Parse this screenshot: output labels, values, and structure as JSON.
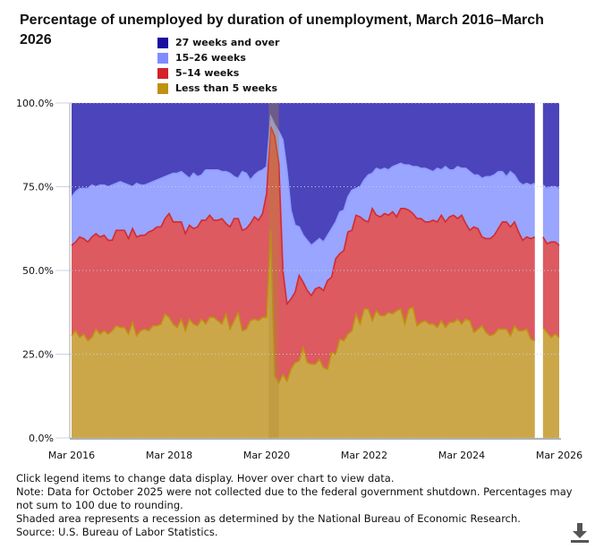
{
  "chart_data": {
    "type": "area",
    "stacked": true,
    "title": "Percentage of unemployed by duration of unemployment, March 2016–March 2026",
    "xlabel": "",
    "ylabel": "",
    "ylim": [
      0,
      100
    ],
    "y_ticks": [
      "0.0%",
      "25.0%",
      "50.0%",
      "75.0%",
      "100.0%"
    ],
    "x_ticks": [
      "Mar 2016",
      "Mar 2018",
      "Mar 2020",
      "Mar 2022",
      "Mar 2024",
      "Mar 2026"
    ],
    "grid": "horizontal dotted",
    "legend_position": "top",
    "recession": {
      "start": "2020-02",
      "end": "2020-04",
      "color": "#b08a30"
    },
    "categories": [
      "2016-03",
      "2016-04",
      "2016-05",
      "2016-06",
      "2016-07",
      "2016-08",
      "2016-09",
      "2016-10",
      "2016-11",
      "2016-12",
      "2017-01",
      "2017-02",
      "2017-03",
      "2017-04",
      "2017-05",
      "2017-06",
      "2017-07",
      "2017-08",
      "2017-09",
      "2017-10",
      "2017-11",
      "2017-12",
      "2018-01",
      "2018-02",
      "2018-03",
      "2018-04",
      "2018-05",
      "2018-06",
      "2018-07",
      "2018-08",
      "2018-09",
      "2018-10",
      "2018-11",
      "2018-12",
      "2019-01",
      "2019-02",
      "2019-03",
      "2019-04",
      "2019-05",
      "2019-06",
      "2019-07",
      "2019-08",
      "2019-09",
      "2019-10",
      "2019-11",
      "2019-12",
      "2020-01",
      "2020-02",
      "2020-03",
      "2020-04",
      "2020-05",
      "2020-06",
      "2020-07",
      "2020-08",
      "2020-09",
      "2020-10",
      "2020-11",
      "2020-12",
      "2021-01",
      "2021-02",
      "2021-03",
      "2021-04",
      "2021-05",
      "2021-06",
      "2021-07",
      "2021-08",
      "2021-09",
      "2021-10",
      "2021-11",
      "2021-12",
      "2022-01",
      "2022-02",
      "2022-03",
      "2022-04",
      "2022-05",
      "2022-06",
      "2022-07",
      "2022-08",
      "2022-09",
      "2022-10",
      "2022-11",
      "2022-12",
      "2023-01",
      "2023-02",
      "2023-03",
      "2023-04",
      "2023-05",
      "2023-06",
      "2023-07",
      "2023-08",
      "2023-09",
      "2023-10",
      "2023-11",
      "2023-12",
      "2024-01",
      "2024-02",
      "2024-03",
      "2024-04",
      "2024-05",
      "2024-06",
      "2024-07",
      "2024-08",
      "2024-09",
      "2024-10",
      "2024-11",
      "2024-12",
      "2025-01",
      "2025-02",
      "2025-03",
      "2025-04",
      "2025-05",
      "2025-06",
      "2025-07",
      "2025-08",
      "2025-09",
      "2025-10",
      "2025-11",
      "2025-12",
      "2026-01",
      "2026-02",
      "2026-03"
    ],
    "series": [
      {
        "name": "27 weeks and over",
        "color": "#4b44bb",
        "legend_color": "#1a0ea0",
        "values": [
          28,
          26.5,
          25.5,
          25.5,
          25.5,
          24.5,
          25,
          24.5,
          24.5,
          25,
          24.5,
          24,
          23.5,
          24,
          24.5,
          25,
          24,
          24.5,
          24.5,
          24,
          23.5,
          23,
          22.5,
          22,
          21.5,
          21,
          21,
          20.5,
          21.5,
          22.5,
          21,
          22,
          21.5,
          20,
          20,
          20,
          20,
          20.5,
          20.5,
          21,
          22,
          22.5,
          20.5,
          21,
          23,
          21.5,
          20.5,
          20,
          19,
          4,
          6.5,
          8.5,
          11,
          20,
          32,
          36.5,
          37,
          39.5,
          41,
          42.5,
          41.5,
          40.5,
          41.5,
          39.5,
          37.5,
          35.5,
          32.5,
          32,
          28,
          26,
          25.5,
          25,
          23,
          21.5,
          21,
          19.5,
          20,
          19.5,
          20,
          19,
          18.5,
          18,
          18.5,
          18.5,
          19,
          19,
          19.5,
          19.5,
          20,
          20.5,
          19.5,
          20,
          19,
          20,
          20,
          19,
          19.5,
          19.5,
          20.5,
          21.5,
          21.5,
          22.5,
          22,
          22,
          21.5,
          20.5,
          20.5,
          22,
          20.5,
          21.5,
          23.5,
          24.5,
          24,
          24.5,
          24,
          null,
          24.5,
          25.5,
          25,
          25,
          25.5
        ]
      },
      {
        "name": "15–26 weeks",
        "color": "#99a5fe",
        "legend_color": "#7f8cff",
        "line": "#8f9cff",
        "values": [
          14.5,
          15,
          14.5,
          15,
          16,
          15.5,
          14,
          15.5,
          15,
          16,
          16.5,
          14,
          14.5,
          14,
          16,
          12.5,
          16,
          15,
          15,
          14.5,
          14.5,
          14,
          14.5,
          12.5,
          11.5,
          14.5,
          14.5,
          15,
          17.5,
          14,
          16.5,
          15,
          13.5,
          15,
          13.5,
          15,
          15,
          14,
          15.5,
          16,
          12.5,
          12,
          17.5,
          16.5,
          13,
          12.5,
          14.5,
          13,
          8,
          3,
          3.5,
          9.5,
          39,
          40,
          26.5,
          20,
          14.5,
          14,
          15,
          15,
          14,
          14.5,
          14.5,
          13.5,
          14.5,
          11,
          12.5,
          12,
          10.5,
          12,
          8,
          9,
          12,
          14,
          10.5,
          14,
          14,
          13.5,
          13.5,
          13.5,
          15.5,
          13.5,
          13,
          13.5,
          14,
          15.5,
          15,
          16,
          15.5,
          14.5,
          16,
          13.5,
          16.5,
          14,
          13.5,
          15.5,
          14,
          16.5,
          17.5,
          15.5,
          16,
          17.5,
          18.5,
          18.5,
          18,
          17,
          15,
          13.5,
          16.5,
          14,
          15,
          16.5,
          16,
          16,
          16,
          null,
          15.5,
          16.5,
          16.5,
          16.5,
          17
        ]
      },
      {
        "name": "5–14 weeks",
        "color": "#dc5a60",
        "legend_color": "#d2232a",
        "line": "#d42a2f",
        "values": [
          27,
          26.5,
          30,
          28.5,
          29.5,
          30,
          28.5,
          29,
          28.5,
          28,
          27,
          28.5,
          29,
          29,
          28.5,
          28,
          29.5,
          28.5,
          28,
          29.5,
          28.5,
          29.5,
          29,
          28.5,
          31,
          30.5,
          31.5,
          29,
          29,
          28,
          28.5,
          29.5,
          29.5,
          31,
          30.5,
          29,
          30,
          31.5,
          27,
          30.5,
          30.5,
          28,
          30,
          30,
          29,
          30.5,
          30,
          31,
          37,
          31,
          71.5,
          65.5,
          31,
          23,
          21,
          21,
          25.5,
          19.5,
          21.5,
          20.5,
          22.5,
          21.5,
          23,
          26.5,
          22.5,
          28.5,
          25.5,
          27,
          30.5,
          30,
          29.5,
          32,
          26.5,
          26,
          33.5,
          28.5,
          29.5,
          30.5,
          29,
          30.5,
          28,
          30,
          34.5,
          29.5,
          28,
          32,
          31,
          29.5,
          30.5,
          31,
          31.5,
          31.5,
          31.5,
          31.5,
          32,
          30,
          32.5,
          28.5,
          27,
          31.5,
          30,
          26.5,
          28,
          29,
          29.5,
          30,
          32,
          32,
          32.5,
          31,
          29.5,
          27,
          27.5,
          30,
          31,
          null,
          27,
          26.5,
          28.5,
          27.5,
          27.5
        ]
      },
      {
        "name": "Less than 5 weeks",
        "color": "#cca74a",
        "legend_color": "#c0900f",
        "line": "#c0900f",
        "values": [
          30.5,
          32,
          30,
          31,
          29,
          30,
          32.5,
          31,
          32,
          31,
          32,
          33.5,
          33,
          33,
          31,
          34.5,
          30.5,
          32,
          32.5,
          32,
          33.5,
          33.5,
          34,
          37,
          36,
          34,
          33,
          35.5,
          32,
          35.5,
          34,
          33.5,
          35.5,
          34,
          36,
          36,
          35,
          34,
          37,
          32.5,
          35,
          37.5,
          32,
          32.5,
          35,
          35.5,
          35,
          36,
          36,
          62,
          18.5,
          16.5,
          19,
          17,
          20.5,
          22.5,
          23,
          27,
          22.5,
          22,
          22,
          23.5,
          21,
          20.5,
          25.5,
          25,
          29.5,
          29,
          31,
          32,
          37,
          34,
          38.5,
          38.5,
          35,
          38,
          36.5,
          36.5,
          37.5,
          37,
          38,
          38.5,
          34,
          38.5,
          39,
          33.5,
          34.5,
          35,
          34,
          34,
          33,
          35,
          33,
          34.5,
          34.5,
          35.5,
          34,
          35.5,
          35,
          31.5,
          32.5,
          33.5,
          31.5,
          30.5,
          31,
          32.5,
          32.5,
          32.5,
          30.5,
          33.5,
          32,
          32,
          32.5,
          29.5,
          29,
          null,
          33,
          31.5,
          30,
          31,
          30
        ]
      }
    ]
  },
  "notes": {
    "instructions": "Click legend items to change data display. Hover over chart to view data.",
    "note": "Note: Data for October 2025 were not collected due to the federal government shutdown. Percentages may not sum to 100 due to rounding.",
    "recession": "Shaded area represents a recession as determined by the National Bureau of Economic Research.",
    "source": "Source: U.S. Bureau of Labor Statistics."
  },
  "download_icon": "download-icon"
}
